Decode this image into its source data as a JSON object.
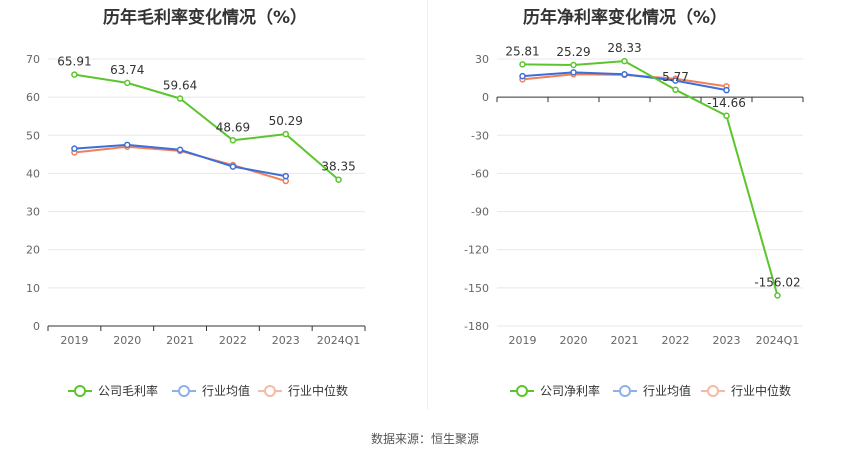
{
  "source_text": "数据来源：恒生聚源",
  "colors": {
    "company": "#5cc52e",
    "avg": "#3d6fd8",
    "median": "#f07f5c",
    "avg_legend": "#8fb0ec",
    "median_legend": "#f7b9a5",
    "axis": "#666666",
    "grid": "#e8e8ec"
  },
  "chart_data": [
    {
      "type": "line",
      "title": "历年毛利率变化情况（%）",
      "categories": [
        "2019",
        "2020",
        "2021",
        "2022",
        "2023",
        "2024Q1"
      ],
      "ylim": [
        0,
        70
      ],
      "yticks": [
        0,
        10,
        20,
        30,
        40,
        50,
        60,
        70
      ],
      "grid": true,
      "legend_position": "bottom",
      "series": [
        {
          "name": "公司毛利率",
          "values": [
            65.91,
            63.74,
            59.64,
            48.69,
            50.29,
            38.35
          ],
          "labels": [
            "65.91",
            "63.74",
            "59.64",
            "48.69",
            "50.29",
            "38.35"
          ]
        },
        {
          "name": "行业均值",
          "values": [
            46.5,
            47.5,
            46.2,
            41.8,
            39.3,
            null
          ]
        },
        {
          "name": "行业中位数",
          "values": [
            45.5,
            47.0,
            45.9,
            42.2,
            38.0,
            null
          ]
        }
      ]
    },
    {
      "type": "line",
      "title": "历年净利率变化情况（%）",
      "categories": [
        "2019",
        "2020",
        "2021",
        "2022",
        "2023",
        "2024Q1"
      ],
      "ylim": [
        -180,
        30
      ],
      "yticks": [
        30,
        0,
        -30,
        -60,
        -90,
        -120,
        -150,
        -180
      ],
      "grid": true,
      "legend_position": "bottom",
      "series": [
        {
          "name": "公司净利率",
          "values": [
            25.81,
            25.29,
            28.33,
            5.77,
            -14.66,
            -156.02
          ],
          "labels": [
            "25.81",
            "25.29",
            "28.33",
            "5.77",
            "-14.66",
            "-156.02"
          ]
        },
        {
          "name": "行业均值",
          "values": [
            16.5,
            19.5,
            18.0,
            13.0,
            5.5,
            null
          ]
        },
        {
          "name": "行业中位数",
          "values": [
            14.0,
            18.0,
            17.5,
            14.5,
            8.5,
            null
          ]
        }
      ]
    }
  ]
}
